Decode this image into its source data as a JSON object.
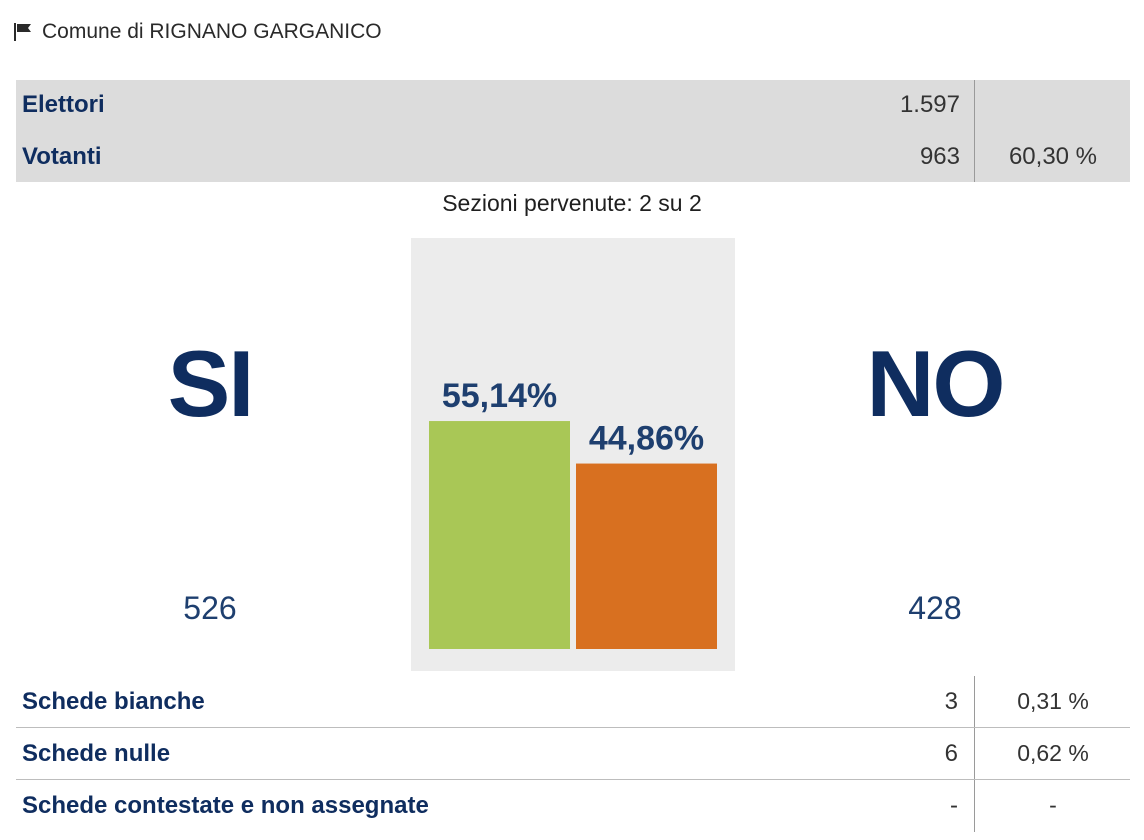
{
  "header": {
    "icon": "flag-icon",
    "title": "Comune di RIGNANO GARGANICO"
  },
  "summary": {
    "elettori": {
      "label": "Elettori",
      "value": "1.597"
    },
    "votanti": {
      "label": "Votanti",
      "value": "963",
      "percent": "60,30 %"
    }
  },
  "sezioni": "Sezioni pervenute: 2 su 2",
  "results": {
    "si": {
      "label": "SI",
      "count": "526",
      "percent_label": "55,14%"
    },
    "no": {
      "label": "NO",
      "count": "428",
      "percent_label": "44,86%"
    }
  },
  "chart_data": {
    "type": "bar",
    "categories": [
      "SI",
      "NO"
    ],
    "values": [
      55.14,
      44.86
    ],
    "value_labels": [
      "55,14%",
      "44,86%"
    ],
    "colors": [
      "#a9c756",
      "#d87020"
    ],
    "title": "",
    "xlabel": "",
    "ylabel": "",
    "ylim": [
      0,
      100
    ],
    "grid": false
  },
  "schede": [
    {
      "label": "Schede bianche",
      "value": "3",
      "percent": "0,31 %"
    },
    {
      "label": "Schede nulle",
      "value": "6",
      "percent": "0,62 %"
    },
    {
      "label": "Schede contestate e non assegnate",
      "value": "-",
      "percent": "-"
    }
  ]
}
